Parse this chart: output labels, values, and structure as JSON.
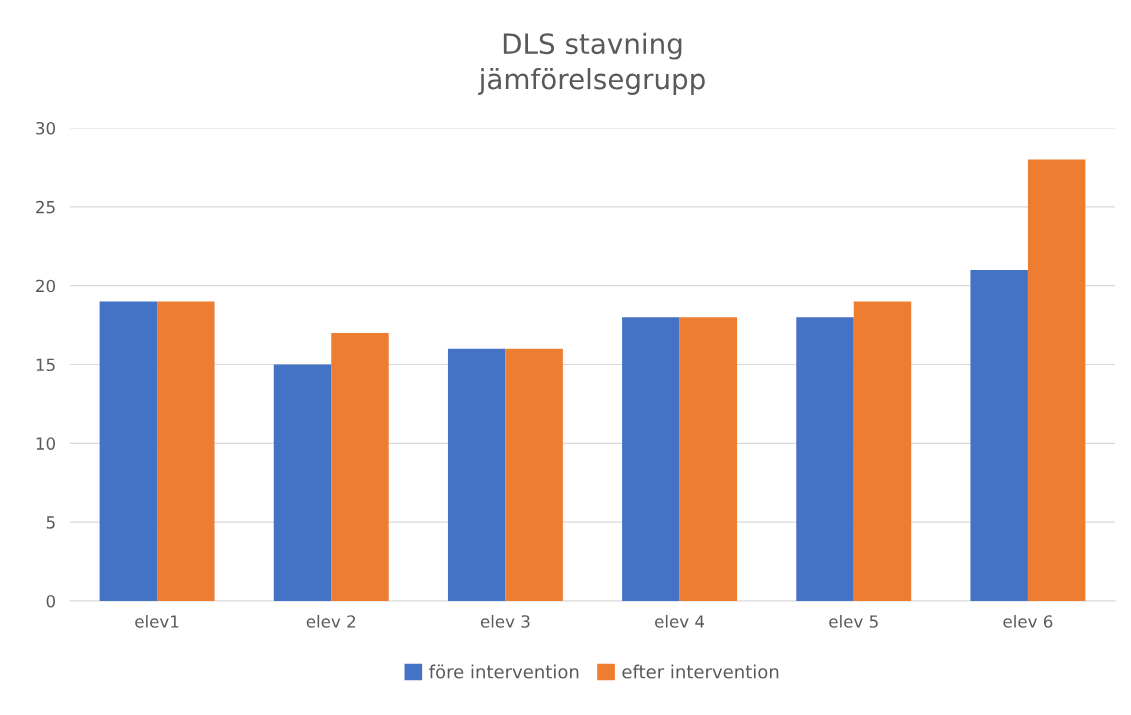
{
  "chart_data": {
    "type": "bar",
    "title": "DLS stavning\njämförelsegrupp",
    "categories": [
      "elev1",
      "elev 2",
      "elev 3",
      "elev 4",
      "elev 5",
      "elev 6"
    ],
    "series": [
      {
        "name": "före intervention",
        "color": "#4472c4",
        "values": [
          19,
          15,
          16,
          18,
          18,
          21
        ]
      },
      {
        "name": "efter intervention",
        "color": "#ed7d31",
        "values": [
          19,
          17,
          16,
          18,
          19,
          28
        ]
      }
    ],
    "ylim": [
      0,
      30
    ],
    "yticks": [
      0,
      5,
      10,
      15,
      20,
      25,
      30
    ],
    "grid": "y",
    "legend": "bottom"
  }
}
